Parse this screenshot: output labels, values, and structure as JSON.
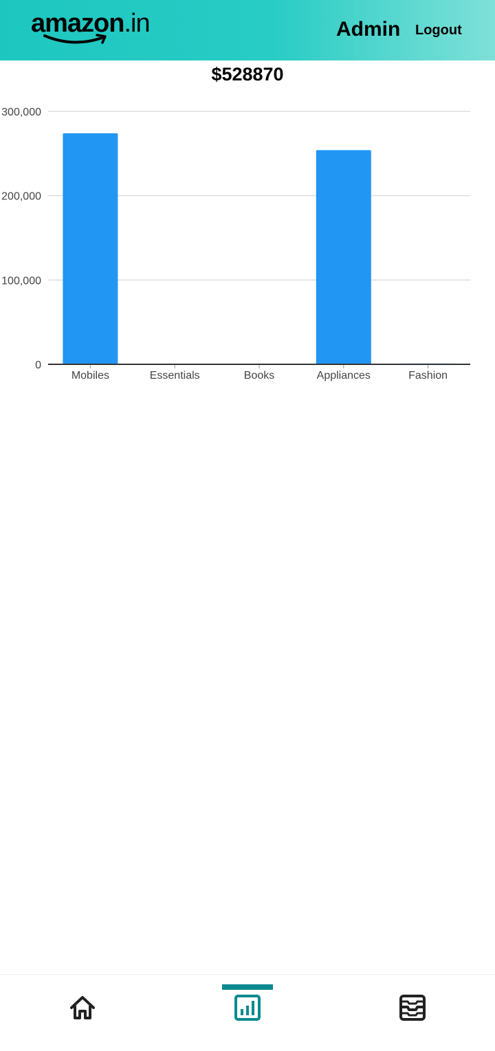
{
  "header": {
    "logo": {
      "name": "amazon",
      "suffix": ".in"
    },
    "admin_label": "Admin",
    "logout_label": "Logout"
  },
  "total": "$528870",
  "chart_data": {
    "type": "bar",
    "title": "",
    "xlabel": "",
    "ylabel": "",
    "categories": [
      "Mobiles",
      "Essentials",
      "Books",
      "Appliances",
      "Fashion"
    ],
    "values": [
      274000,
      0,
      0,
      254000,
      870
    ],
    "ylim": [
      0,
      300000
    ],
    "yticks": [
      0,
      100000,
      200000,
      300000
    ],
    "ytick_labels": [
      "0",
      "100,000",
      "200,000",
      "300,000"
    ],
    "grid": true,
    "legend": "none",
    "bar_color": "#2196f3"
  },
  "bottom_nav": {
    "items": [
      {
        "icon": "home-icon",
        "active": false
      },
      {
        "icon": "analytics-icon",
        "active": true
      },
      {
        "icon": "inbox-icon",
        "active": false
      }
    ],
    "active_color": "#0a8a8f",
    "inactive_color": "#222222"
  }
}
